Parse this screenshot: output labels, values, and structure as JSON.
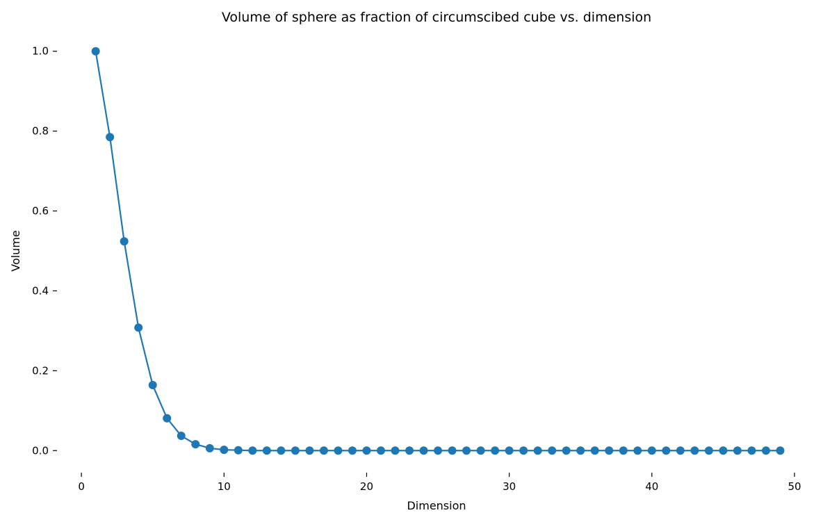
{
  "chart_data": {
    "type": "line",
    "title": "Volume of sphere as fraction of circumscibed cube vs. dimension",
    "xlabel": "Dimension",
    "ylabel": "Volume",
    "xlim": [
      -0.2,
      50
    ],
    "ylim": [
      -0.05,
      1.05
    ],
    "xticks": [
      0,
      10,
      20,
      30,
      40,
      50
    ],
    "xtick_labels": [
      "0",
      "10",
      "20",
      "30",
      "40",
      "50"
    ],
    "yticks": [
      0.0,
      0.2,
      0.4,
      0.6,
      0.8,
      1.0
    ],
    "ytick_labels": [
      "0.0",
      "0.2",
      "0.4",
      "0.6",
      "0.8",
      "1.0"
    ],
    "grid": false,
    "markers": true,
    "series": [
      {
        "color": "#1f77b4",
        "x": [
          1,
          2,
          3,
          4,
          5,
          6,
          7,
          8,
          9,
          10,
          11,
          12,
          13,
          14,
          15,
          16,
          17,
          18,
          19,
          20,
          21,
          22,
          23,
          24,
          25,
          26,
          27,
          28,
          29,
          30,
          31,
          32,
          33,
          34,
          35,
          36,
          37,
          38,
          39,
          40,
          41,
          42,
          43,
          44,
          45,
          46,
          47,
          48,
          49
        ],
        "y": [
          1.0,
          0.785,
          0.524,
          0.308,
          0.164,
          0.081,
          0.037,
          0.016,
          0.006,
          0.002,
          0.001,
          0.0,
          0.0,
          0.0,
          0.0,
          0.0,
          0.0,
          0.0,
          0.0,
          0.0,
          0.0,
          0.0,
          0.0,
          0.0,
          0.0,
          0.0,
          0.0,
          0.0,
          0.0,
          0.0,
          0.0,
          0.0,
          0.0,
          0.0,
          0.0,
          0.0,
          0.0,
          0.0,
          0.0,
          0.0,
          0.0,
          0.0,
          0.0,
          0.0,
          0.0,
          0.0,
          0.0,
          0.0,
          0.0
        ]
      }
    ]
  }
}
